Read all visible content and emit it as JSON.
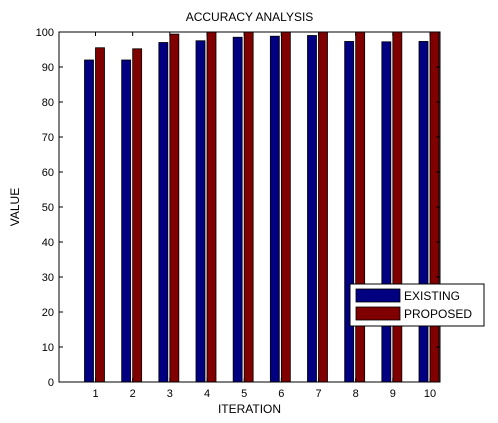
{
  "chart_data": {
    "type": "bar",
    "title": "ACCURACY ANALYSIS",
    "xlabel": "ITERATION",
    "ylabel": "VALUE",
    "categories": [
      "1",
      "2",
      "3",
      "4",
      "5",
      "6",
      "7",
      "8",
      "9",
      "10"
    ],
    "ylim": [
      0,
      100
    ],
    "yticks": [
      0,
      10,
      20,
      30,
      40,
      50,
      60,
      70,
      80,
      90,
      100
    ],
    "grid": false,
    "legend_position": "bottom-right",
    "series": [
      {
        "name": "EXISTING",
        "color": "#000080",
        "values": [
          92,
          92,
          97,
          97.5,
          98.5,
          98.8,
          99,
          97.3,
          97.2,
          97.3
        ]
      },
      {
        "name": "PROPOSED",
        "color": "#800000",
        "values": [
          95.5,
          95.2,
          99.4,
          100,
          100,
          100,
          100,
          100,
          100,
          100
        ]
      }
    ]
  }
}
